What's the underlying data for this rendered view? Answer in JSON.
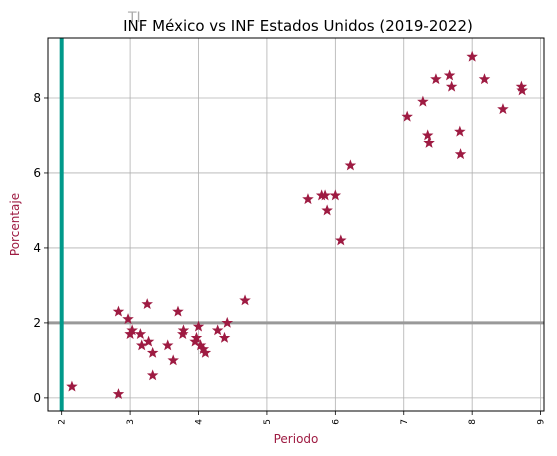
{
  "chart_data": {
    "type": "scatter",
    "title": "INF México vs INF Estados Unidos (2019-2022)",
    "watermark_text": "TI",
    "xlabel": "Periodo",
    "ylabel": "Porcentaje",
    "xlim": [
      1.8,
      9.05
    ],
    "ylim": [
      -0.35,
      9.6
    ],
    "xticks": [
      2,
      3,
      4,
      5,
      6,
      7,
      8,
      9
    ],
    "yticks": [
      0,
      2,
      4,
      6,
      8
    ],
    "grid": true,
    "marker": "star",
    "marker_color": "#9e1b42",
    "label_color": "#9e1b42",
    "vline": {
      "x": 2,
      "color": "#00998a"
    },
    "hline": {
      "y": 2,
      "color": "#999999"
    },
    "points": [
      [
        2.15,
        0.3
      ],
      [
        2.83,
        0.1
      ],
      [
        2.83,
        2.3
      ],
      [
        2.97,
        2.1
      ],
      [
        3.0,
        1.7
      ],
      [
        3.03,
        1.8
      ],
      [
        3.15,
        1.7
      ],
      [
        3.17,
        1.4
      ],
      [
        3.25,
        2.5
      ],
      [
        3.27,
        1.5
      ],
      [
        3.33,
        0.6
      ],
      [
        3.33,
        1.2
      ],
      [
        3.55,
        1.4
      ],
      [
        3.63,
        1.0
      ],
      [
        3.7,
        2.3
      ],
      [
        3.77,
        1.7
      ],
      [
        3.78,
        1.8
      ],
      [
        3.95,
        1.5
      ],
      [
        3.97,
        1.6
      ],
      [
        4.0,
        1.9
      ],
      [
        4.03,
        1.4
      ],
      [
        4.07,
        1.3
      ],
      [
        4.1,
        1.2
      ],
      [
        4.28,
        1.8
      ],
      [
        4.38,
        1.6
      ],
      [
        4.42,
        2.0
      ],
      [
        4.68,
        2.6
      ],
      [
        5.6,
        5.3
      ],
      [
        5.8,
        5.4
      ],
      [
        5.85,
        5.4
      ],
      [
        5.88,
        5.0
      ],
      [
        6.0,
        5.4
      ],
      [
        6.08,
        4.2
      ],
      [
        6.22,
        6.2
      ],
      [
        7.05,
        7.5
      ],
      [
        7.28,
        7.9
      ],
      [
        7.35,
        7.0
      ],
      [
        7.37,
        6.8
      ],
      [
        7.47,
        8.5
      ],
      [
        7.67,
        8.6
      ],
      [
        7.7,
        8.3
      ],
      [
        7.82,
        7.1
      ],
      [
        7.83,
        6.5
      ],
      [
        8.0,
        9.1
      ],
      [
        8.18,
        8.5
      ],
      [
        8.45,
        7.7
      ],
      [
        8.72,
        8.3
      ],
      [
        8.73,
        8.2
      ]
    ]
  }
}
